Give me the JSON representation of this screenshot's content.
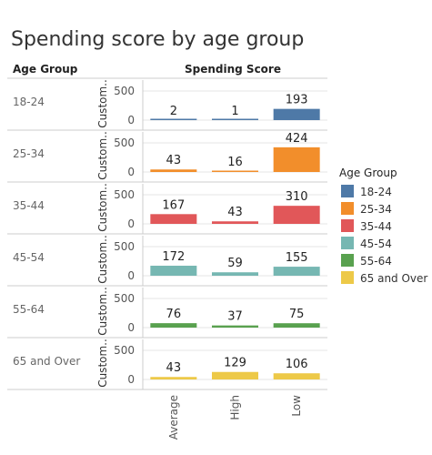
{
  "colors": {
    "18-24": "#4e79a7",
    "25-34": "#f28e2b",
    "35-44": "#e15759",
    "45-54": "#76b7b2",
    "55-64": "#59a14f",
    "65 and Over": "#edc948"
  },
  "chart_data": {
    "type": "bar",
    "title": "Spending score by age group",
    "row_header": "Age Group",
    "column_header": "Spending Score",
    "row_axis_label": "Custom..",
    "categories": [
      "Average",
      "High",
      "Low"
    ],
    "y_ticks": [
      0,
      500
    ],
    "ylim": [
      0,
      500
    ],
    "series": [
      {
        "name": "18-24",
        "values": [
          2,
          1,
          193
        ]
      },
      {
        "name": "25-34",
        "values": [
          43,
          16,
          424
        ]
      },
      {
        "name": "35-44",
        "values": [
          167,
          43,
          310
        ]
      },
      {
        "name": "45-54",
        "values": [
          172,
          59,
          155
        ]
      },
      {
        "name": "55-64",
        "values": [
          76,
          37,
          75
        ]
      },
      {
        "name": "65 and Over",
        "values": [
          43,
          129,
          106
        ]
      }
    ],
    "legend_title": "Age Group",
    "legend_position": "right",
    "grid": true
  }
}
